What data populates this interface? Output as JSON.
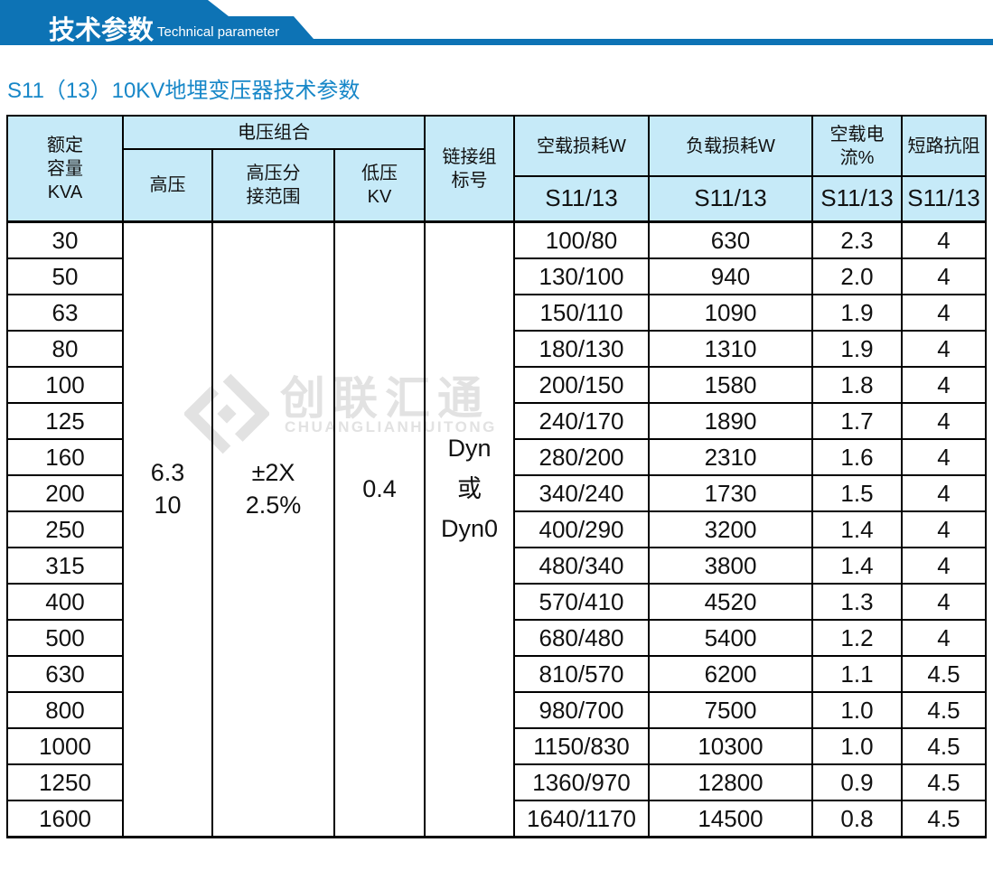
{
  "banner": {
    "title_cn": "技术参数",
    "title_en": "Technical parameter",
    "color": "#0d73b5"
  },
  "page_title": "S11（13）10KV地埋变压器技术参数",
  "watermark": {
    "cn": "创联汇通",
    "en": "CHUANGLIANHUITONG",
    "color": "#e2e2e2"
  },
  "table": {
    "header": {
      "capacity": "额定\n容量\nKVA",
      "voltage_group": "电压组合",
      "high_voltage": "高压",
      "tap_range": "高压分\n接范围",
      "low_voltage": "低压\nKV",
      "link_group": "链接组\n标号",
      "noload_loss": "空载损耗W",
      "load_loss": "负载损耗W",
      "noload_current": "空载电流%",
      "impedance": "短路抗阻",
      "model_sub": "S11/13"
    },
    "merged": {
      "high_voltage": "6.3\n10",
      "tap_range": "±2X\n2.5%",
      "low_voltage": "0.4",
      "link_group": "Dyn\n或\nDyn0"
    },
    "columns": {
      "kva": [
        "30",
        "50",
        "63",
        "80",
        "100",
        "125",
        "160",
        "200",
        "250",
        "315",
        "400",
        "500",
        "630",
        "800",
        "1000",
        "1250",
        "1600"
      ],
      "noload_loss": [
        "100/80",
        "130/100",
        "150/110",
        "180/130",
        "200/150",
        "240/170",
        "280/200",
        "340/240",
        "400/290",
        "480/340",
        "570/410",
        "680/480",
        "810/570",
        "980/700",
        "1150/830",
        "1360/970",
        "1640/1170"
      ],
      "load_loss": [
        "630",
        "940",
        "1090",
        "1310",
        "1580",
        "1890",
        "2310",
        "1730",
        "3200",
        "3800",
        "4520",
        "5400",
        "6200",
        "7500",
        "10300",
        "12800",
        "14500"
      ],
      "noload_current": [
        "2.3",
        "2.0",
        "1.9",
        "1.9",
        "1.8",
        "1.7",
        "1.6",
        "1.5",
        "1.4",
        "1.4",
        "1.3",
        "1.2",
        "1.1",
        "1.0",
        "1.0",
        "0.9",
        "0.8"
      ],
      "impedance": [
        "4",
        "4",
        "4",
        "4",
        "4",
        "4",
        "4",
        "4",
        "4",
        "4",
        "4",
        "4",
        "4.5",
        "4.5",
        "4.5",
        "4.5",
        "4.5"
      ]
    }
  }
}
